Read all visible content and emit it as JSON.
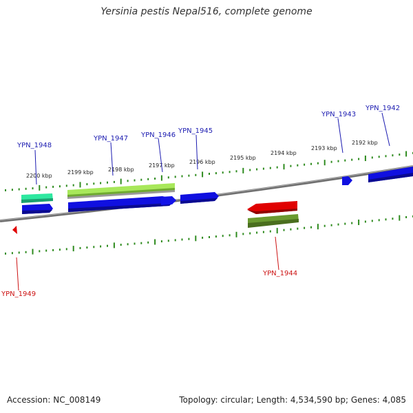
{
  "title": "Yersinia pestis Nepal516, complete genome",
  "footer": {
    "accession": "Accession: NC_008149",
    "stats": "Topology: circular; Length: 4,534,590 bp; Genes: 4,085"
  },
  "colors": {
    "backbone": "#7a7a7a",
    "tick": "#2e8b1e",
    "forward_gene": "#1010e0",
    "reverse_gene": "#e00000",
    "forward_label": "#1a1ab0",
    "reverse_label": "#cc1111",
    "teal_feature": "#2ee8a0",
    "lime_feature": "#a8e85a",
    "olive_feature": "#5e8a2a"
  },
  "ticks": [
    "2200 kbp",
    "2199 kbp",
    "2198 kbp",
    "2197 kbp",
    "2196 kbp",
    "2195 kbp",
    "2194 kbp",
    "2193 kbp",
    "2192 kbp"
  ],
  "genes": [
    {
      "id": "YPN_1948",
      "strand": "forward"
    },
    {
      "id": "YPN_1947",
      "strand": "forward"
    },
    {
      "id": "YPN_1946",
      "strand": "forward"
    },
    {
      "id": "YPN_1945",
      "strand": "forward"
    },
    {
      "id": "YPN_1943",
      "strand": "forward"
    },
    {
      "id": "YPN_1942",
      "strand": "forward"
    },
    {
      "id": "YPN_1944",
      "strand": "reverse"
    },
    {
      "id": "YPN_1949",
      "strand": "reverse"
    }
  ]
}
